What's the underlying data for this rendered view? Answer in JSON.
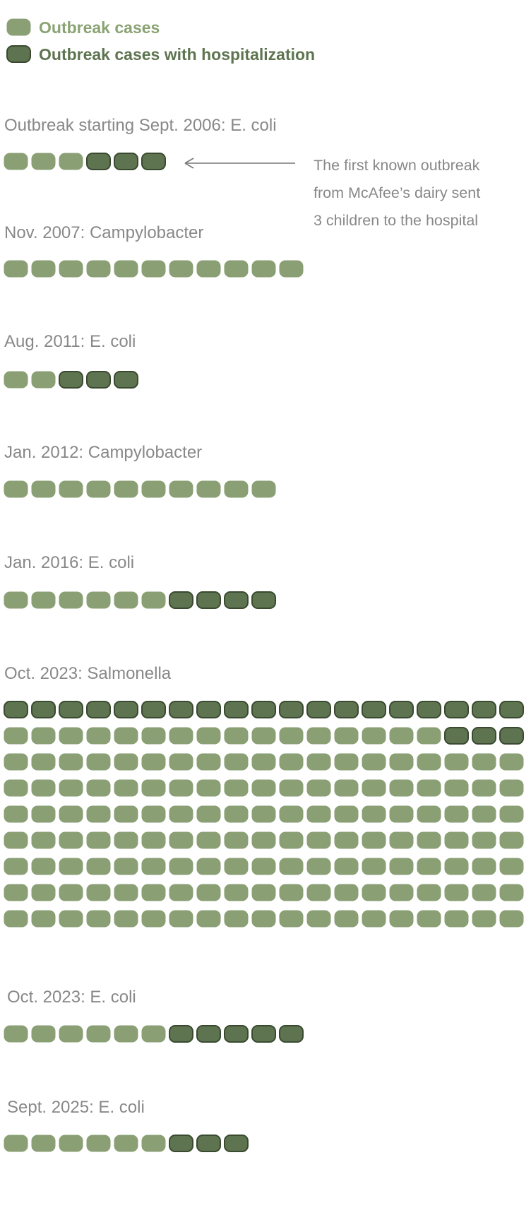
{
  "legend": [
    {
      "label": "Outbreak cases",
      "color": "#8a9f74",
      "stroke": "#8a9f74",
      "text_color": "#8aa374"
    },
    {
      "label": "Outbreak cases with hospitalization",
      "color": "#5e7450",
      "stroke": "#3a4a30",
      "text_color": "#5e7450"
    }
  ],
  "chart_data": {
    "type": "unit",
    "unit": "one case per block",
    "groups": [
      {
        "label": "Outbreak starting Sept. 2006: E. coli",
        "cases": 6,
        "hospitalized": 3
      },
      {
        "label": "Nov. 2007: Campylobacter",
        "cases": 11,
        "hospitalized": 0
      },
      {
        "label": "Aug. 2011: E. coli",
        "cases": 5,
        "hospitalized": 3
      },
      {
        "label": "Jan. 2012: Campylobacter",
        "cases": 10,
        "hospitalized": 0
      },
      {
        "label": "Jan. 2016: E. coli",
        "cases": 10,
        "hospitalized": 4
      },
      {
        "label": "Oct. 2023: Salmonella",
        "cases": 171,
        "hospitalized": 22
      },
      {
        "label": "Oct. 2023: E. coli",
        "cases": 11,
        "hospitalized": 5
      },
      {
        "label": "Sept. 2025: E. coli",
        "cases": 9,
        "hospitalized": 3
      }
    ]
  },
  "annotation": {
    "lines": [
      "The first known outbreak",
      "from McAfee’s dairy sent",
      "3 children to the hospital"
    ]
  }
}
